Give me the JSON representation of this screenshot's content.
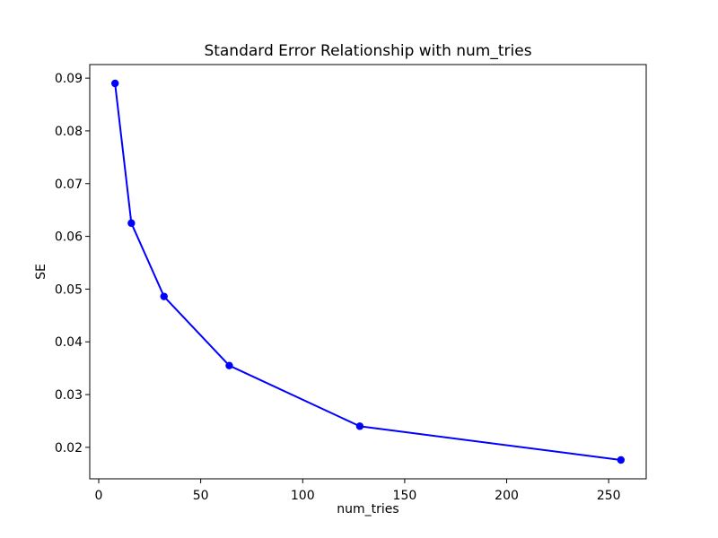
{
  "figure": {
    "title": "Standard Error Relationship with num_tries",
    "xlabel": "num_tries",
    "ylabel": "SE"
  },
  "chart_data": {
    "type": "line",
    "title": "Standard Error Relationship with num_tries",
    "xlabel": "num_tries",
    "ylabel": "SE",
    "x": [
      8,
      16,
      32,
      64,
      128,
      256
    ],
    "y": [
      0.089,
      0.0625,
      0.0486,
      0.0355,
      0.024,
      0.0176
    ],
    "series": [
      {
        "name": "SE",
        "values": [
          0.089,
          0.0625,
          0.0486,
          0.0355,
          0.024,
          0.0176
        ]
      }
    ],
    "line_color": "#0000ff",
    "marker": "circle",
    "marker_color": "#0000ff",
    "xlim": [
      -4.4,
      268.4
    ],
    "ylim": [
      0.01403,
      0.09257
    ],
    "x_ticks": [
      0,
      50,
      100,
      150,
      200,
      250
    ],
    "y_ticks": [
      0.02,
      0.03,
      0.04,
      0.05,
      0.06,
      0.07,
      0.08,
      0.09
    ],
    "y_tick_decimals": 2,
    "grid": false,
    "legend": null,
    "spine_color": "#000000",
    "background_color": "#ffffff"
  }
}
